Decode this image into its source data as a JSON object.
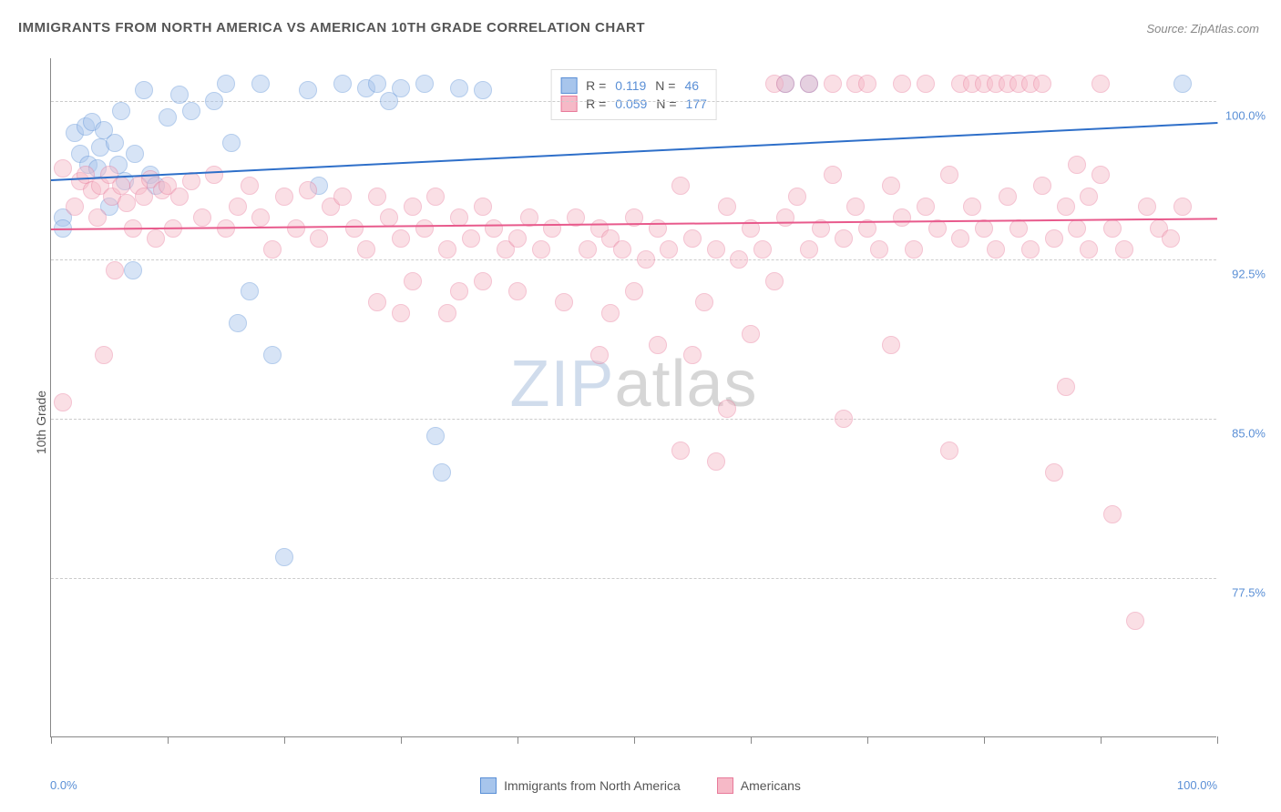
{
  "title": "IMMIGRANTS FROM NORTH AMERICA VS AMERICAN 10TH GRADE CORRELATION CHART",
  "source": "Source: ZipAtlas.com",
  "y_axis_label": "10th Grade",
  "watermark": {
    "zip": "ZIP",
    "atlas": "atlas"
  },
  "chart": {
    "type": "scatter",
    "xlim": [
      0,
      100
    ],
    "ylim": [
      70,
      102
    ],
    "x_ticks": [
      0,
      10,
      20,
      30,
      40,
      50,
      60,
      70,
      80,
      90,
      100
    ],
    "x_tick_label_left": "0.0%",
    "x_tick_label_right": "100.0%",
    "y_gridlines": [
      77.5,
      85.0,
      92.5,
      100.0
    ],
    "y_tick_labels": [
      "77.5%",
      "85.0%",
      "92.5%",
      "100.0%"
    ],
    "grid_color": "#cccccc",
    "axis_color": "#888888",
    "label_color": "#5a8fd6",
    "background_color": "#ffffff",
    "point_radius": 10,
    "point_opacity": 0.45,
    "series": [
      {
        "name": "Immigrants from North America",
        "color_fill": "#a7c5ec",
        "color_stroke": "#5a8fd6",
        "trend_color": "#2e6fc9",
        "r": "0.119",
        "n": "46",
        "trend": {
          "y_at_x0": 96.3,
          "y_at_x100": 99.0
        },
        "points": [
          [
            1,
            94.5
          ],
          [
            2,
            98.5
          ],
          [
            2.5,
            97.5
          ],
          [
            3,
            98.8
          ],
          [
            3.2,
            97.0
          ],
          [
            3.5,
            99.0
          ],
          [
            4,
            96.8
          ],
          [
            4.2,
            97.8
          ],
          [
            4.5,
            98.6
          ],
          [
            5,
            95.0
          ],
          [
            5.5,
            98.0
          ],
          [
            5.8,
            97.0
          ],
          [
            6,
            99.5
          ],
          [
            6.3,
            96.2
          ],
          [
            7,
            92.0
          ],
          [
            7.2,
            97.5
          ],
          [
            8,
            100.5
          ],
          [
            8.5,
            96.5
          ],
          [
            9,
            96.0
          ],
          [
            10,
            99.2
          ],
          [
            11,
            100.3
          ],
          [
            12,
            99.5
          ],
          [
            14,
            100.0
          ],
          [
            15,
            100.8
          ],
          [
            15.5,
            98.0
          ],
          [
            16,
            89.5
          ],
          [
            17,
            91.0
          ],
          [
            18,
            100.8
          ],
          [
            19,
            88.0
          ],
          [
            20,
            78.5
          ],
          [
            22,
            100.5
          ],
          [
            23,
            96.0
          ],
          [
            25,
            100.8
          ],
          [
            27,
            100.6
          ],
          [
            28,
            100.8
          ],
          [
            29,
            100.0
          ],
          [
            30,
            100.6
          ],
          [
            32,
            100.8
          ],
          [
            33,
            84.2
          ],
          [
            33.5,
            82.5
          ],
          [
            35,
            100.6
          ],
          [
            37,
            100.5
          ],
          [
            63,
            100.8
          ],
          [
            65,
            100.8
          ],
          [
            97,
            100.8
          ],
          [
            1,
            94.0
          ]
        ]
      },
      {
        "name": "Americans",
        "color_fill": "#f6b9c7",
        "color_stroke": "#e87a9a",
        "trend_color": "#e85a8c",
        "r": "0.059",
        "n": "177",
        "trend": {
          "y_at_x0": 94.0,
          "y_at_x100": 94.5
        },
        "points": [
          [
            1,
            96.8
          ],
          [
            1,
            85.8
          ],
          [
            2,
            95.0
          ],
          [
            2.5,
            96.2
          ],
          [
            3,
            96.5
          ],
          [
            3.5,
            95.8
          ],
          [
            4,
            94.5
          ],
          [
            4.2,
            96.0
          ],
          [
            4.5,
            88.0
          ],
          [
            5,
            96.5
          ],
          [
            5.2,
            95.5
          ],
          [
            5.5,
            92.0
          ],
          [
            6,
            96.0
          ],
          [
            6.5,
            95.2
          ],
          [
            7,
            94.0
          ],
          [
            7.5,
            96.0
          ],
          [
            8,
            95.5
          ],
          [
            8.5,
            96.3
          ],
          [
            9,
            93.5
          ],
          [
            9.5,
            95.8
          ],
          [
            10,
            96.0
          ],
          [
            10.5,
            94.0
          ],
          [
            11,
            95.5
          ],
          [
            12,
            96.2
          ],
          [
            13,
            94.5
          ],
          [
            14,
            96.5
          ],
          [
            15,
            94.0
          ],
          [
            16,
            95.0
          ],
          [
            17,
            96.0
          ],
          [
            18,
            94.5
          ],
          [
            19,
            93.0
          ],
          [
            20,
            95.5
          ],
          [
            21,
            94.0
          ],
          [
            22,
            95.8
          ],
          [
            23,
            93.5
          ],
          [
            24,
            95.0
          ],
          [
            25,
            95.5
          ],
          [
            26,
            94.0
          ],
          [
            27,
            93.0
          ],
          [
            28,
            95.5
          ],
          [
            28,
            90.5
          ],
          [
            29,
            94.5
          ],
          [
            30,
            93.5
          ],
          [
            30,
            90.0
          ],
          [
            31,
            95.0
          ],
          [
            31,
            91.5
          ],
          [
            32,
            94.0
          ],
          [
            33,
            95.5
          ],
          [
            34,
            93.0
          ],
          [
            34,
            90.0
          ],
          [
            35,
            94.5
          ],
          [
            35,
            91.0
          ],
          [
            36,
            93.5
          ],
          [
            37,
            95.0
          ],
          [
            37,
            91.5
          ],
          [
            38,
            94.0
          ],
          [
            39,
            93.0
          ],
          [
            40,
            93.5
          ],
          [
            40,
            91.0
          ],
          [
            41,
            94.5
          ],
          [
            42,
            93.0
          ],
          [
            43,
            94.0
          ],
          [
            44,
            90.5
          ],
          [
            45,
            94.5
          ],
          [
            46,
            93.0
          ],
          [
            47,
            94.0
          ],
          [
            47,
            88.0
          ],
          [
            48,
            93.5
          ],
          [
            48,
            90.0
          ],
          [
            49,
            93.0
          ],
          [
            50,
            94.5
          ],
          [
            50,
            91.0
          ],
          [
            51,
            92.5
          ],
          [
            52,
            94.0
          ],
          [
            52,
            88.5
          ],
          [
            53,
            93.0
          ],
          [
            54,
            96.0
          ],
          [
            54,
            83.5
          ],
          [
            55,
            93.5
          ],
          [
            55,
            88.0
          ],
          [
            56,
            90.5
          ],
          [
            57,
            93.0
          ],
          [
            57,
            83.0
          ],
          [
            58,
            95.0
          ],
          [
            58,
            85.5
          ],
          [
            59,
            92.5
          ],
          [
            60,
            94.0
          ],
          [
            60,
            89.0
          ],
          [
            61,
            93.0
          ],
          [
            62,
            91.5
          ],
          [
            62,
            100.8
          ],
          [
            63,
            94.5
          ],
          [
            63,
            100.8
          ],
          [
            64,
            95.5
          ],
          [
            65,
            93.0
          ],
          [
            65,
            100.8
          ],
          [
            66,
            94.0
          ],
          [
            67,
            96.5
          ],
          [
            67,
            100.8
          ],
          [
            68,
            93.5
          ],
          [
            68,
            85.0
          ],
          [
            69,
            95.0
          ],
          [
            69,
            100.8
          ],
          [
            70,
            94.0
          ],
          [
            70,
            100.8
          ],
          [
            71,
            93.0
          ],
          [
            72,
            96.0
          ],
          [
            72,
            88.5
          ],
          [
            73,
            94.5
          ],
          [
            73,
            100.8
          ],
          [
            74,
            93.0
          ],
          [
            75,
            95.0
          ],
          [
            75,
            100.8
          ],
          [
            76,
            94.0
          ],
          [
            77,
            96.5
          ],
          [
            77,
            83.5
          ],
          [
            78,
            93.5
          ],
          [
            78,
            100.8
          ],
          [
            79,
            95.0
          ],
          [
            79,
            100.8
          ],
          [
            80,
            94.0
          ],
          [
            80,
            100.8
          ],
          [
            81,
            93.0
          ],
          [
            81,
            100.8
          ],
          [
            82,
            95.5
          ],
          [
            82,
            100.8
          ],
          [
            83,
            94.0
          ],
          [
            83,
            100.8
          ],
          [
            84,
            93.0
          ],
          [
            84,
            100.8
          ],
          [
            85,
            96.0
          ],
          [
            85,
            100.8
          ],
          [
            86,
            93.5
          ],
          [
            86,
            82.5
          ],
          [
            87,
            95.0
          ],
          [
            87,
            86.5
          ],
          [
            88,
            94.0
          ],
          [
            88,
            97.0
          ],
          [
            89,
            93.0
          ],
          [
            89,
            95.5
          ],
          [
            90,
            96.5
          ],
          [
            90,
            100.8
          ],
          [
            91,
            94.0
          ],
          [
            91,
            80.5
          ],
          [
            92,
            93.0
          ],
          [
            93,
            75.5
          ],
          [
            94,
            95.0
          ],
          [
            95,
            94.0
          ],
          [
            96,
            93.5
          ],
          [
            97,
            95.0
          ]
        ]
      }
    ]
  },
  "legend_top_labels": {
    "r": "R =",
    "n": "N ="
  },
  "legend_bottom": [
    {
      "label": "Immigrants from North America",
      "fill": "#a7c5ec",
      "stroke": "#5a8fd6"
    },
    {
      "label": "Americans",
      "fill": "#f6b9c7",
      "stroke": "#e87a9a"
    }
  ]
}
